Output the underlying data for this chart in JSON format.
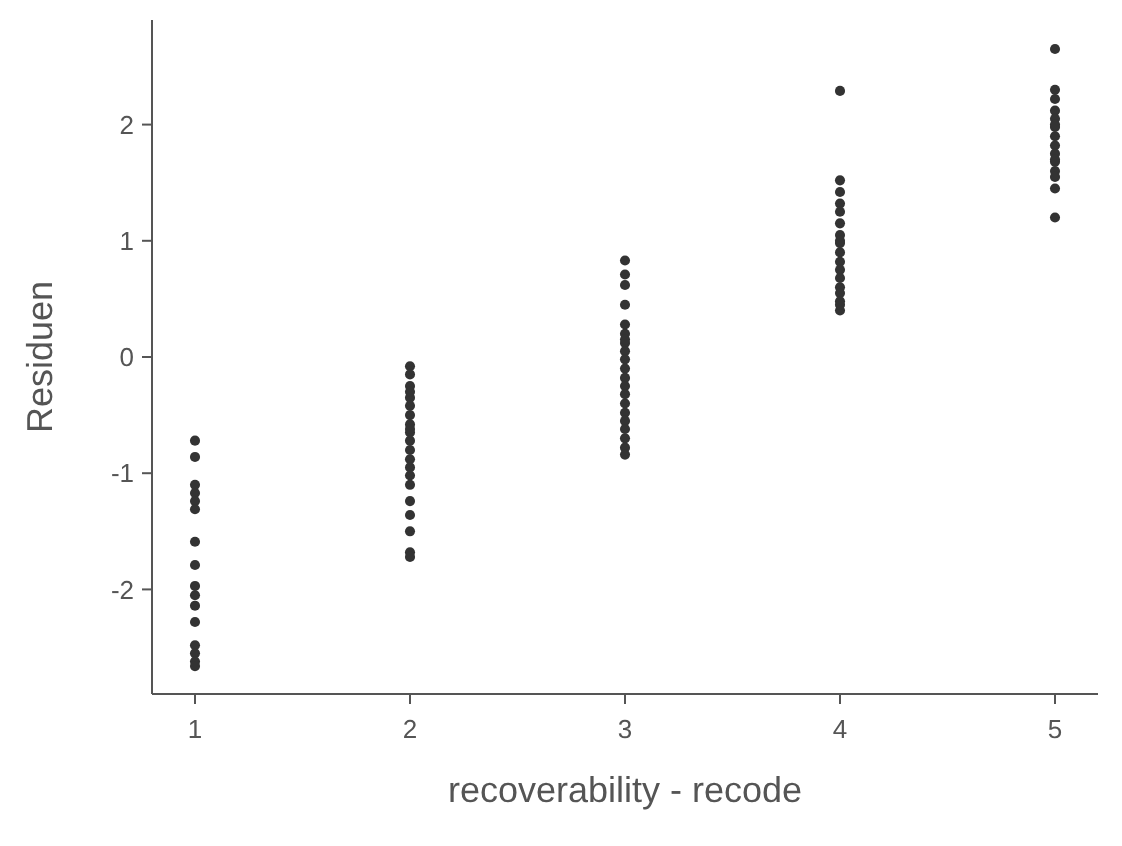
{
  "chart_data": {
    "type": "scatter",
    "xlabel": "recoverability - recode",
    "ylabel": "Residuen",
    "xlim": [
      0.8,
      5.2
    ],
    "ylim": [
      -2.9,
      2.9
    ],
    "xticks": [
      1,
      2,
      3,
      4,
      5
    ],
    "yticks": [
      -2,
      -1,
      0,
      1,
      2
    ],
    "grid": false,
    "marker": "circle",
    "series": [
      {
        "color": "#333333",
        "x": [
          1,
          1,
          1,
          1,
          1,
          1,
          1,
          1,
          1,
          1,
          1,
          1,
          1,
          1,
          1,
          1,
          2,
          2,
          2,
          2,
          2,
          2,
          2,
          2,
          2,
          2,
          2,
          2,
          2,
          2,
          2,
          2,
          2,
          2,
          2,
          2,
          2,
          3,
          3,
          3,
          3,
          3,
          3,
          3,
          3,
          3,
          3,
          3,
          3,
          3,
          3,
          3,
          3,
          3,
          3,
          3,
          3,
          3,
          4,
          4,
          4,
          4,
          4,
          4,
          4,
          4,
          4,
          4,
          4,
          4,
          4,
          4,
          4,
          4,
          4,
          4,
          5,
          5,
          5,
          5,
          5,
          5,
          5,
          5,
          5,
          5,
          5,
          5,
          5,
          5,
          5,
          5
        ],
        "values": [
          -0.72,
          -0.86,
          -1.1,
          -1.17,
          -1.24,
          -1.31,
          -1.59,
          -1.79,
          -1.97,
          -2.05,
          -2.14,
          -2.28,
          -2.48,
          -2.55,
          -2.62,
          -2.66,
          -0.08,
          -0.15,
          -0.25,
          -0.35,
          -0.42,
          -0.5,
          -0.58,
          -0.65,
          -0.72,
          -0.8,
          -0.88,
          -0.95,
          -1.02,
          -1.1,
          -1.24,
          -1.36,
          -1.5,
          -1.68,
          -1.72,
          -0.3,
          -0.62,
          0.83,
          0.71,
          0.62,
          0.45,
          0.28,
          0.2,
          0.12,
          0.05,
          -0.02,
          -0.1,
          -0.18,
          -0.25,
          -0.32,
          -0.4,
          -0.48,
          -0.55,
          -0.62,
          -0.7,
          -0.78,
          -0.84,
          0.15,
          2.29,
          1.52,
          1.42,
          1.32,
          1.25,
          1.15,
          1.05,
          0.98,
          0.9,
          0.82,
          0.75,
          0.68,
          0.6,
          0.55,
          0.48,
          0.4,
          1.0,
          0.45,
          2.65,
          2.3,
          2.22,
          2.12,
          2.05,
          1.98,
          1.9,
          1.82,
          1.75,
          1.68,
          1.6,
          1.55,
          1.45,
          1.2,
          2.0,
          1.7
        ]
      }
    ]
  }
}
